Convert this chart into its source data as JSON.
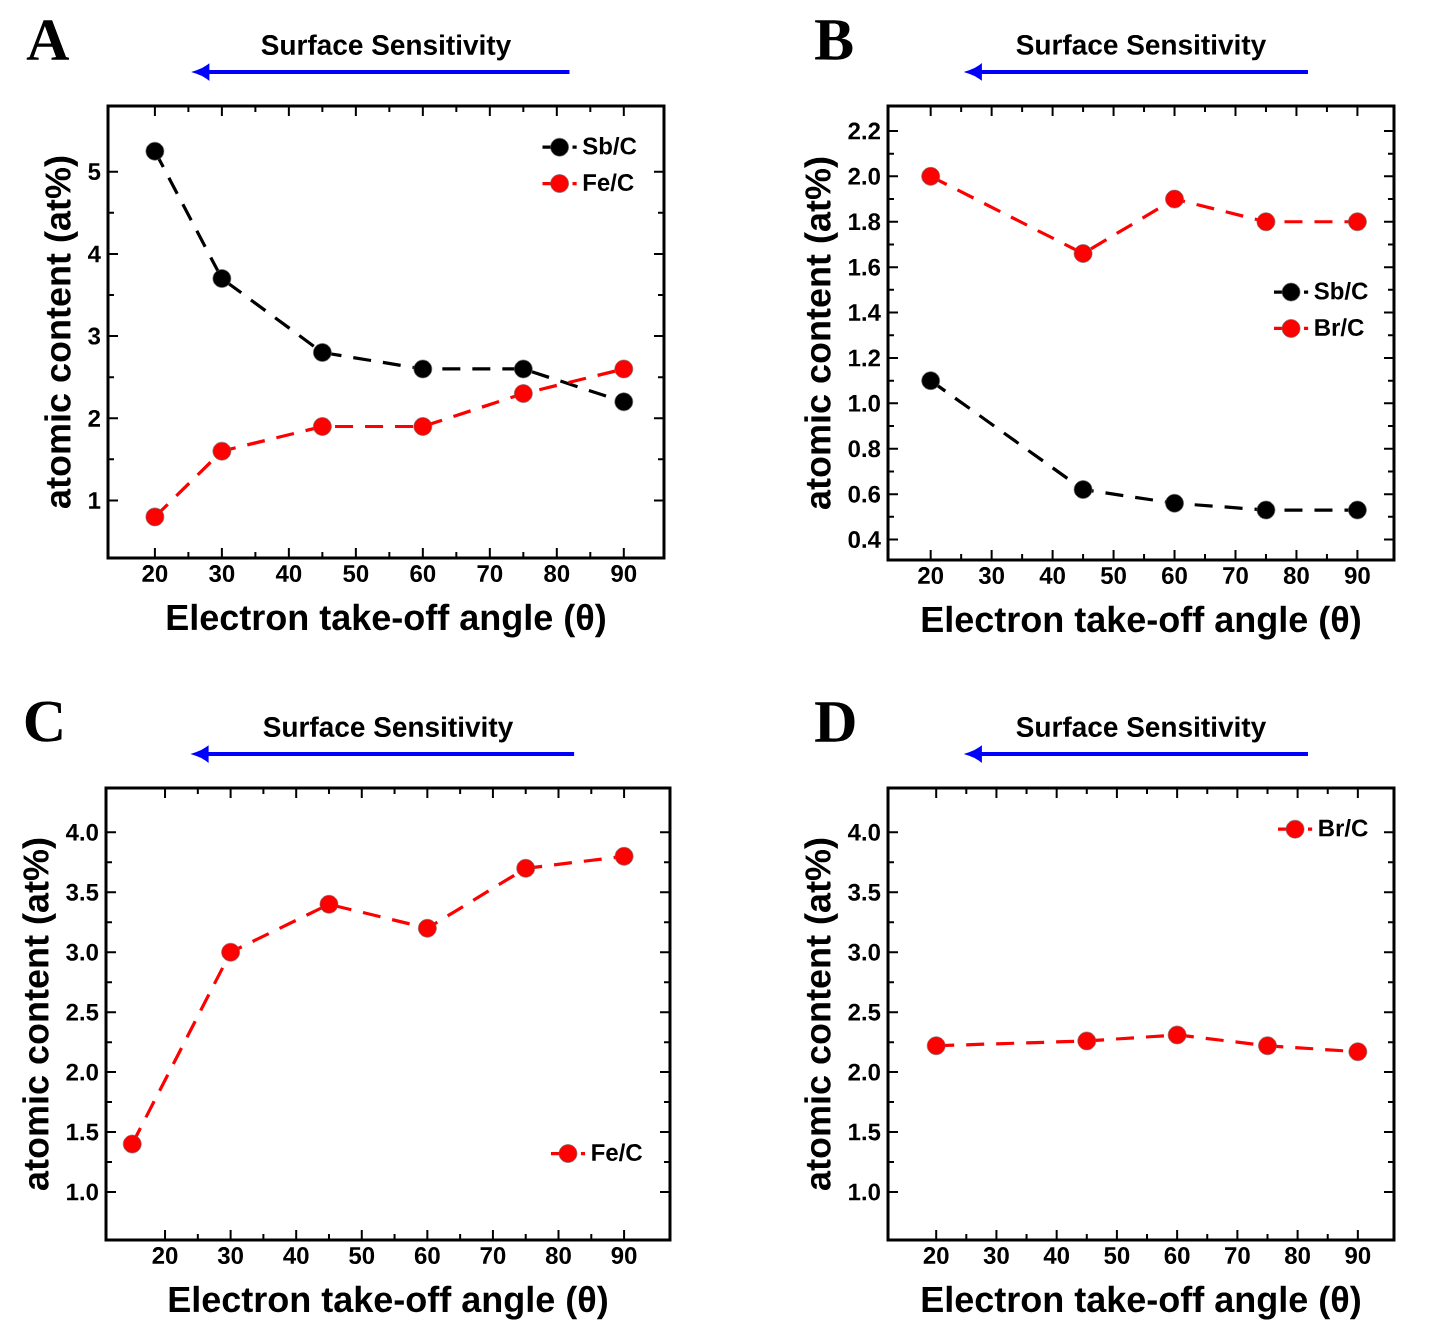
{
  "chart_data": [
    {
      "type": "line",
      "title": "A",
      "annotations": [
        "Surface Sensitivity"
      ],
      "xlabel": "Electron take-off angle (θ)",
      "ylabel": "atomic content (at%)",
      "xlim": [
        13,
        96
      ],
      "ylim": [
        0.3,
        5.8
      ],
      "xticks": [
        20,
        30,
        40,
        50,
        60,
        70,
        80,
        90
      ],
      "yticks": [
        1,
        2,
        3,
        4,
        5
      ],
      "legend": "top right",
      "marker": "circle",
      "line_style": "dashed",
      "grid": false,
      "x": [
        20,
        30,
        45,
        60,
        75,
        90
      ],
      "series": [
        {
          "name": "Sb/C",
          "color": "#000000",
          "values": [
            5.25,
            3.7,
            2.8,
            2.6,
            2.6,
            2.2
          ]
        },
        {
          "name": "Fe/C",
          "color": "#ff0000",
          "values": [
            0.8,
            1.6,
            1.9,
            1.9,
            2.3,
            2.6
          ]
        }
      ]
    },
    {
      "type": "line",
      "title": "B",
      "annotations": [
        "Surface Sensitivity"
      ],
      "xlabel": "Electron take-off angle (θ)",
      "ylabel": "atomic content (at%)",
      "xlim": [
        13,
        96
      ],
      "ylim": [
        0.31,
        2.31
      ],
      "xticks": [
        20,
        30,
        40,
        50,
        60,
        70,
        80,
        90
      ],
      "yticks": [
        0.4,
        0.6,
        0.8,
        {
          "value": 1,
          "label": "1.0"
        },
        1.2,
        1.4,
        1.6,
        1.8,
        {
          "value": 2,
          "label": "2.0"
        },
        2.2
      ],
      "legend": "right",
      "marker": "circle",
      "line_style": "dashed",
      "grid": false,
      "x": [
        20,
        45,
        60,
        75,
        90
      ],
      "series": [
        {
          "name": "Sb/C",
          "color": "#000000",
          "values": [
            1.1,
            0.62,
            0.56,
            0.53,
            0.53
          ]
        },
        {
          "name": "Br/C",
          "color": "#ff0000",
          "values": [
            2.0,
            1.66,
            1.9,
            1.8,
            1.8
          ]
        }
      ]
    },
    {
      "type": "line",
      "title": "C",
      "annotations": [
        "Surface Sensitivity"
      ],
      "xlabel": "Electron take-off angle (θ)",
      "ylabel": "atomic content (at%)",
      "xlim": [
        11,
        97
      ],
      "ylim": [
        0.6,
        4.37
      ],
      "xticks": [
        20,
        30,
        40,
        50,
        60,
        70,
        80,
        90
      ],
      "yticks": [
        {
          "value": 1,
          "label": "1.0"
        },
        1.5,
        {
          "value": 2,
          "label": "2.0"
        },
        2.5,
        {
          "value": 3,
          "label": "3.0"
        },
        3.5,
        {
          "value": 4,
          "label": "4.0"
        }
      ],
      "legend": "bottom right",
      "marker": "circle",
      "line_style": "dashed",
      "grid": false,
      "x": [
        15,
        30,
        45,
        60,
        75,
        90
      ],
      "series": [
        {
          "name": "Fe/C",
          "color": "#ff0000",
          "values": [
            1.4,
            3.0,
            3.4,
            3.2,
            3.7,
            3.8
          ]
        }
      ]
    },
    {
      "type": "line",
      "title": "D",
      "annotations": [
        "Surface Sensitivity"
      ],
      "xlabel": "Electron take-off angle (θ)",
      "ylabel": "atomic content (at%)",
      "xlim": [
        12,
        96
      ],
      "ylim": [
        0.6,
        4.37
      ],
      "xticks": [
        20,
        30,
        40,
        50,
        60,
        70,
        80,
        90
      ],
      "yticks": [
        {
          "value": 1,
          "label": "1.0"
        },
        1.5,
        {
          "value": 2,
          "label": "2.0"
        },
        2.5,
        {
          "value": 3,
          "label": "3.0"
        },
        3.5,
        {
          "value": 4,
          "label": "4.0"
        }
      ],
      "legend": "top right",
      "marker": "circle",
      "line_style": "dashed",
      "grid": false,
      "x": [
        20,
        45,
        60,
        75,
        90
      ],
      "series": [
        {
          "name": "Br/C",
          "color": "#ff0000",
          "values": [
            2.22,
            2.26,
            2.31,
            2.22,
            2.17
          ]
        }
      ]
    }
  ]
}
